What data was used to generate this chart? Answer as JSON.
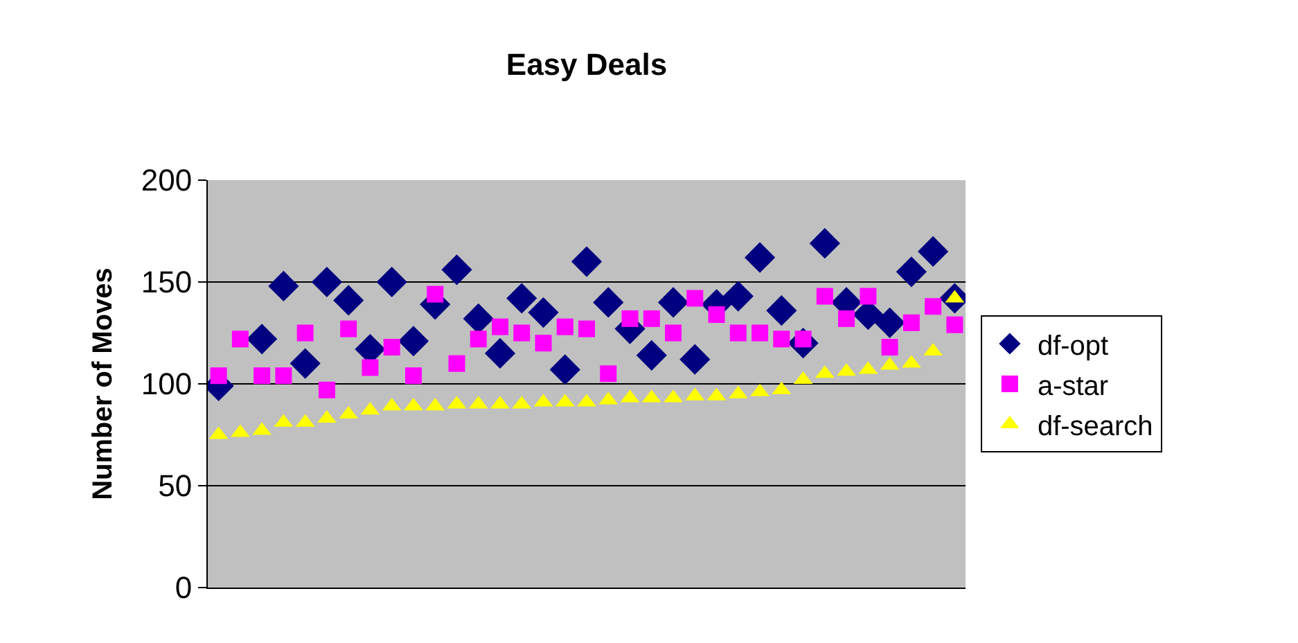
{
  "chart_data": {
    "type": "scatter",
    "title": "Easy Deals",
    "ylabel": "Number of Moves",
    "categories": [
      null,
      null,
      null,
      null,
      null,
      null,
      null,
      null,
      null,
      null,
      null,
      null,
      null,
      null,
      null,
      null,
      null,
      null,
      null,
      null,
      null,
      null,
      null,
      null,
      null,
      null,
      null,
      null,
      null,
      null,
      null,
      null,
      null,
      null,
      null
    ],
    "series": [
      {
        "name": "df-opt",
        "color": "#000080",
        "marker": "diamond",
        "values": [
          99,
          null,
          122,
          148,
          110,
          150,
          141,
          117,
          150,
          121,
          139,
          156,
          132,
          115,
          142,
          135,
          107,
          160,
          140,
          127,
          114,
          140,
          112,
          139,
          143,
          162,
          136,
          120,
          169,
          140,
          134,
          130,
          155,
          165,
          142
        ]
      },
      {
        "name": "a-star",
        "color": "#ff00ff",
        "marker": "square",
        "values": [
          104,
          122,
          104,
          104,
          125,
          97,
          127,
          108,
          118,
          104,
          144,
          110,
          122,
          128,
          125,
          120,
          128,
          127,
          105,
          132,
          132,
          125,
          142,
          134,
          125,
          125,
          122,
          122,
          143,
          132,
          143,
          118,
          130,
          138,
          129
        ]
      },
      {
        "name": "df-search",
        "color": "#ffff00",
        "marker": "triangle",
        "values": [
          75,
          76,
          77,
          81,
          81,
          83,
          85,
          87,
          89,
          89,
          89,
          90,
          90,
          90,
          90,
          91,
          91,
          91,
          92,
          93,
          93,
          93,
          94,
          94,
          95,
          96,
          97,
          102,
          105,
          106,
          107,
          109,
          110,
          116,
          142
        ]
      }
    ],
    "ylim": [
      0,
      200
    ],
    "yticks": [
      0,
      50,
      100,
      150,
      200
    ],
    "grid": "y",
    "legend": "right",
    "tick_labels": "y"
  }
}
